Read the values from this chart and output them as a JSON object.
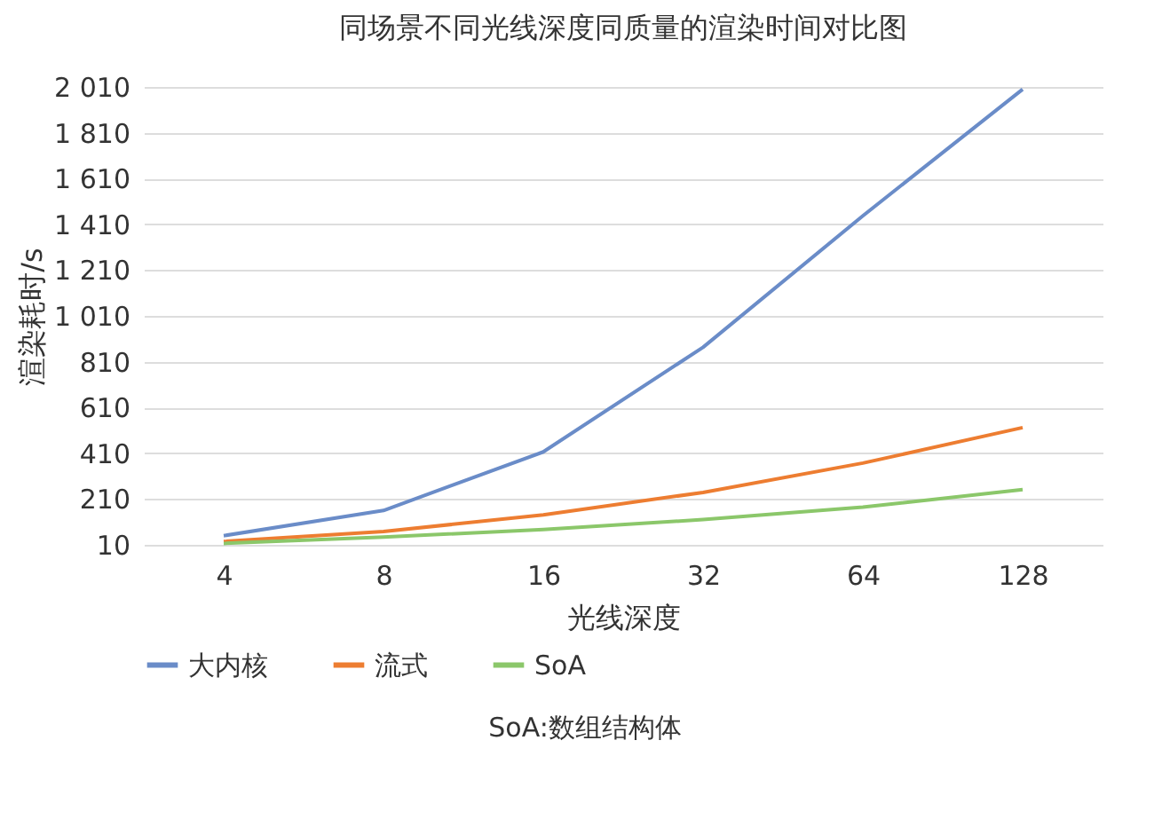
{
  "chart_data": {
    "type": "line",
    "title": "同场景不同光线深度同质量的渲染时间对比图",
    "xlabel": "光线深度",
    "ylabel": "渲染耗时/s",
    "categories": [
      "4",
      "8",
      "16",
      "32",
      "64",
      "128"
    ],
    "series": [
      {
        "name": "大内核",
        "color": "#6a8cc8",
        "values": [
          50,
          160,
          416,
          873,
          1447,
          2000
        ]
      },
      {
        "name": "流式",
        "color": "#ed7d31",
        "values": [
          25,
          68,
          141,
          239,
          367,
          522
        ]
      },
      {
        "name": "SoA",
        "color": "#8bc76a",
        "values": [
          16,
          44,
          77,
          120,
          175,
          251
        ]
      }
    ],
    "ylim": [
      10,
      2010
    ],
    "yticks": [
      10,
      210,
      410,
      610,
      810,
      {
        "value": 1010,
        "label": "1 010"
      },
      {
        "value": 1210,
        "label": "1 210"
      },
      {
        "value": 1410,
        "label": "1 410"
      },
      {
        "value": 1610,
        "label": "1 610"
      },
      {
        "value": 1810,
        "label": "1 810"
      },
      {
        "value": 2010,
        "label": "2 010"
      }
    ],
    "grid": "y",
    "legend": "bottom",
    "marker": "none",
    "line_style": "solid",
    "annotations": [
      "SoA:数组结构体"
    ]
  }
}
